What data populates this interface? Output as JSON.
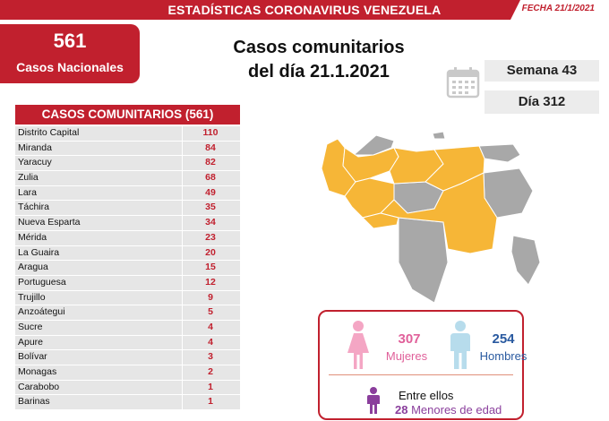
{
  "header": {
    "title": "ESTADÍSTICAS CORONAVIRUS VENEZUELA",
    "date": "FECHA 21/1/2021"
  },
  "summary": {
    "total": "561",
    "total_label": "Casos Nacionales"
  },
  "main_title": {
    "line1": "Casos comunitarios",
    "line2": "del día 21.1.2021"
  },
  "calendar": {
    "icon": "calendar-icon",
    "week": "Semana 43",
    "day": "Día 312"
  },
  "table": {
    "header": "CASOS COMUNITARIOS (561)",
    "rows": [
      {
        "name": "Distrito Capital",
        "value": "110"
      },
      {
        "name": "Miranda",
        "value": "84"
      },
      {
        "name": "Yaracuy",
        "value": "82"
      },
      {
        "name": "Zulia",
        "value": "68"
      },
      {
        "name": "Lara",
        "value": "49"
      },
      {
        "name": "Táchira",
        "value": "35"
      },
      {
        "name": "Nueva Esparta",
        "value": "34"
      },
      {
        "name": "Mérida",
        "value": "23"
      },
      {
        "name": "La Guaira",
        "value": "20"
      },
      {
        "name": "Aragua",
        "value": "15"
      },
      {
        "name": "Portuguesa",
        "value": "12"
      },
      {
        "name": "Trujillo",
        "value": "9"
      },
      {
        "name": "Anzoátegui",
        "value": "5"
      },
      {
        "name": "Sucre",
        "value": "4"
      },
      {
        "name": "Apure",
        "value": "4"
      },
      {
        "name": "Bolívar",
        "value": "3"
      },
      {
        "name": "Monagas",
        "value": "2"
      },
      {
        "name": "Carabobo",
        "value": "1"
      },
      {
        "name": "Barinas",
        "value": "1"
      }
    ]
  },
  "map": {
    "affected_color": "#f6b637",
    "unaffected_color": "#a8a8a8"
  },
  "gender": {
    "women_count": "307",
    "women_label": "Mujeres",
    "women_color": "#f4a6c4",
    "men_count": "254",
    "men_label": "Hombres",
    "men_color": "#b7dcec",
    "minors_intro": "Entre ellos",
    "minors_count": "28",
    "minors_label": "Menores de edad",
    "minors_color": "#8a3e9c"
  },
  "colors": {
    "brand_red": "#c1202e"
  }
}
